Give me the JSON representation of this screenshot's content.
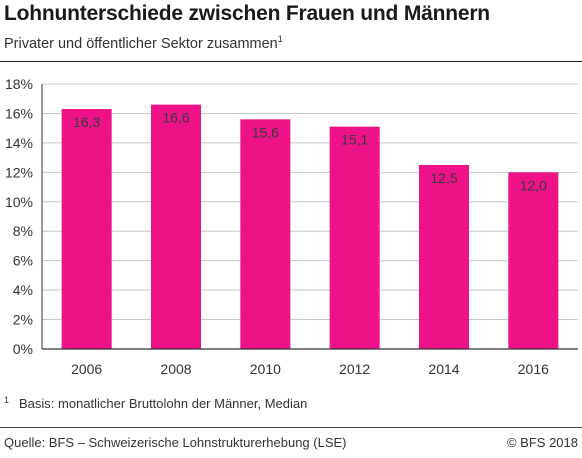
{
  "title": "Lohnunterschiede zwischen Frauen und Männern",
  "subtitle": "Privater und öffentlicher Sektor zusammen",
  "subtitle_footnote_mark": "1",
  "footnote": {
    "mark": "1",
    "text": "Basis: monatlicher Bruttolohn der Männer, Median"
  },
  "source": "Quelle: BFS – Schweizerische Lohnstrukturerhebung (LSE)",
  "copyright": "© BFS 2018",
  "colors": {
    "bar": "#ee1289",
    "grid": "#c8c8c8",
    "axis": "#333333"
  },
  "chart_data": {
    "type": "bar",
    "categories": [
      "2006",
      "2008",
      "2010",
      "2012",
      "2014",
      "2016"
    ],
    "values": [
      16.3,
      16.6,
      15.6,
      15.1,
      12.5,
      12.0
    ],
    "value_labels": [
      "16,3",
      "16,6",
      "15,6",
      "15,1",
      "12,5",
      "12,0"
    ],
    "yticks": [
      0,
      2,
      4,
      6,
      8,
      10,
      12,
      14,
      16,
      18
    ],
    "ytick_labels": [
      "0%",
      "2%",
      "4%",
      "6%",
      "8%",
      "10%",
      "12%",
      "14%",
      "16%",
      "18%"
    ],
    "ylim": [
      0,
      18
    ],
    "grid": true,
    "title": "",
    "xlabel": "",
    "ylabel": ""
  }
}
